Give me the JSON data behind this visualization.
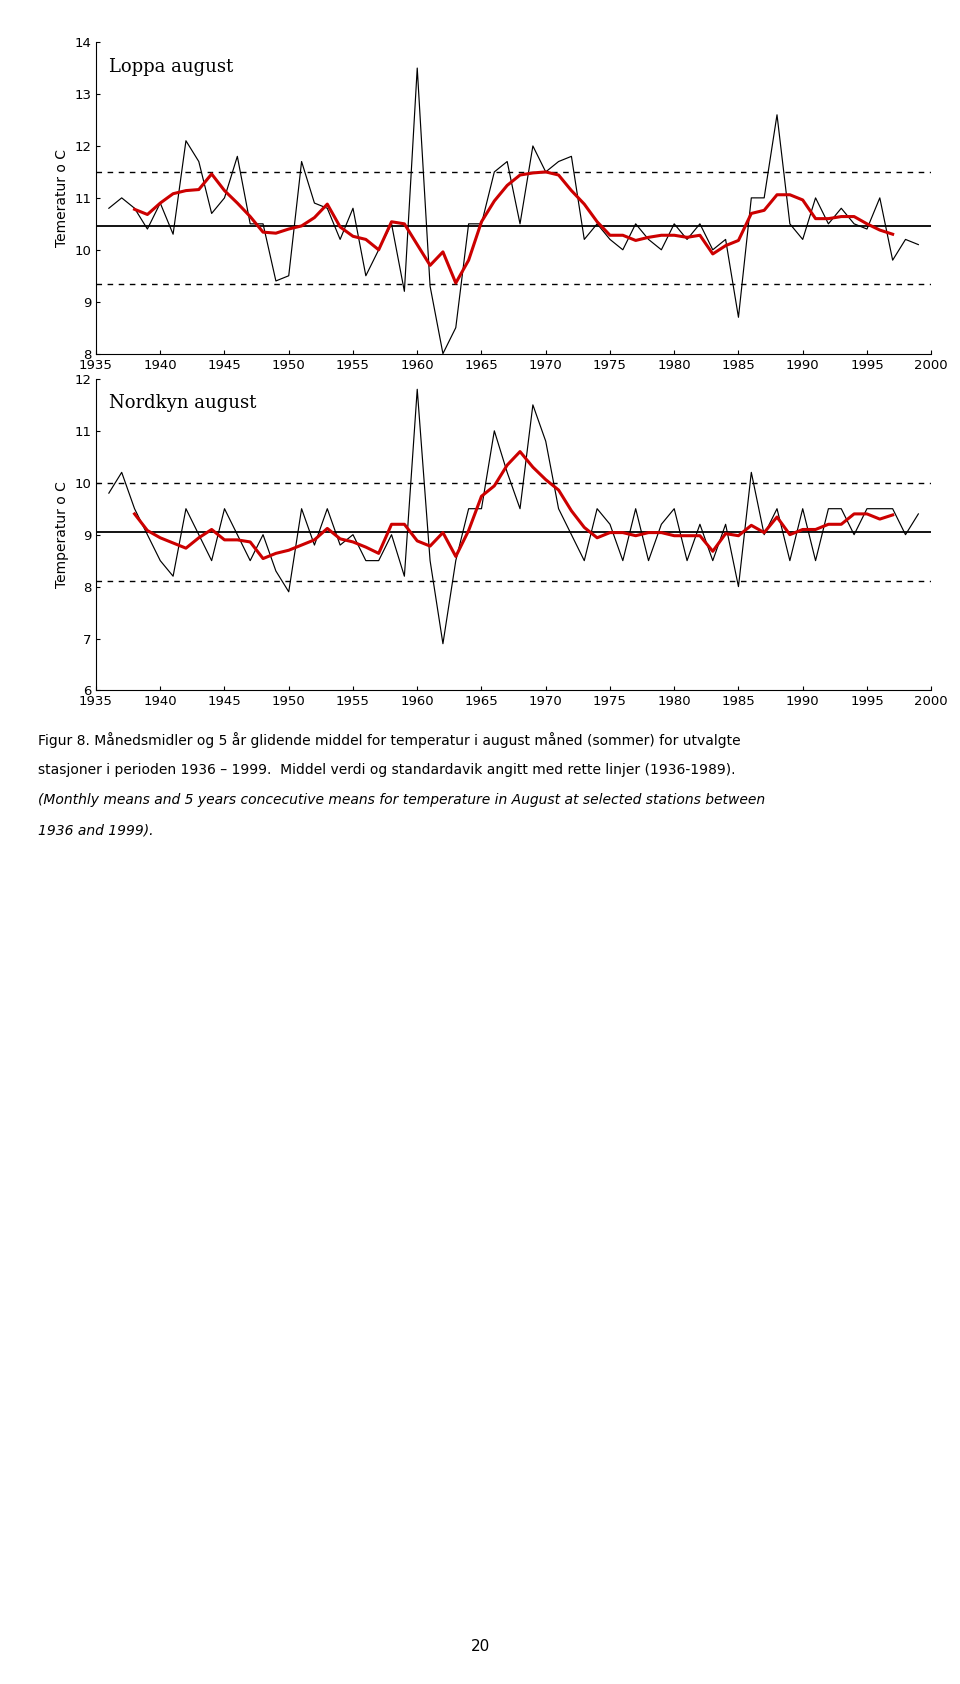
{
  "loppa": {
    "title": "Loppa august",
    "ylabel": "Temeratur o C",
    "years": [
      1936,
      1937,
      1938,
      1939,
      1940,
      1941,
      1942,
      1943,
      1944,
      1945,
      1946,
      1947,
      1948,
      1949,
      1950,
      1951,
      1952,
      1953,
      1954,
      1955,
      1956,
      1957,
      1958,
      1959,
      1960,
      1961,
      1962,
      1963,
      1964,
      1965,
      1966,
      1967,
      1968,
      1969,
      1970,
      1971,
      1972,
      1973,
      1974,
      1975,
      1976,
      1977,
      1978,
      1979,
      1980,
      1981,
      1982,
      1983,
      1984,
      1985,
      1986,
      1987,
      1988,
      1989,
      1990,
      1991,
      1992,
      1993,
      1994,
      1995,
      1996,
      1997,
      1998,
      1999
    ],
    "monthly": [
      10.8,
      11.0,
      10.8,
      10.4,
      10.9,
      10.3,
      12.1,
      11.7,
      10.7,
      11.0,
      11.8,
      10.5,
      10.5,
      9.4,
      9.5,
      11.7,
      10.9,
      10.8,
      10.2,
      10.8,
      9.5,
      10.0,
      10.5,
      9.2,
      13.5,
      9.3,
      8.0,
      8.5,
      10.5,
      10.5,
      11.5,
      11.7,
      10.5,
      12.0,
      11.5,
      11.7,
      11.8,
      10.2,
      10.5,
      10.2,
      10.0,
      10.5,
      10.2,
      10.0,
      10.5,
      10.2,
      10.5,
      10.0,
      10.2,
      8.7,
      11.0,
      11.0,
      12.6,
      10.5,
      10.2,
      11.0,
      10.5,
      10.8,
      10.5,
      10.4,
      11.0,
      9.8,
      10.2,
      10.1
    ],
    "mean": 10.45,
    "std_plus": 11.5,
    "std_minus": 9.35,
    "ylim": [
      8,
      14
    ],
    "yticks": [
      8,
      9,
      10,
      11,
      12,
      13,
      14
    ]
  },
  "nordkyn": {
    "title": "Nordkyn august",
    "ylabel": "Temperatur o C",
    "years": [
      1936,
      1937,
      1938,
      1939,
      1940,
      1941,
      1942,
      1943,
      1944,
      1945,
      1946,
      1947,
      1948,
      1949,
      1950,
      1951,
      1952,
      1953,
      1954,
      1955,
      1956,
      1957,
      1958,
      1959,
      1960,
      1961,
      1962,
      1963,
      1964,
      1965,
      1966,
      1967,
      1968,
      1969,
      1970,
      1971,
      1972,
      1973,
      1974,
      1975,
      1976,
      1977,
      1978,
      1979,
      1980,
      1981,
      1982,
      1983,
      1984,
      1985,
      1986,
      1987,
      1988,
      1989,
      1990,
      1991,
      1992,
      1993,
      1994,
      1995,
      1996,
      1997,
      1998,
      1999
    ],
    "monthly": [
      9.8,
      10.2,
      9.5,
      9.0,
      8.5,
      8.2,
      9.5,
      9.0,
      8.5,
      9.5,
      9.0,
      8.5,
      9.0,
      8.3,
      7.9,
      9.5,
      8.8,
      9.5,
      8.8,
      9.0,
      8.5,
      8.5,
      9.0,
      8.2,
      11.8,
      8.5,
      6.9,
      8.5,
      9.5,
      9.5,
      11.0,
      10.2,
      9.5,
      11.5,
      10.8,
      9.5,
      9.0,
      8.5,
      9.5,
      9.2,
      8.5,
      9.5,
      8.5,
      9.2,
      9.5,
      8.5,
      9.2,
      8.5,
      9.2,
      8.0,
      10.2,
      9.0,
      9.5,
      8.5,
      9.5,
      8.5,
      9.5,
      9.5,
      9.0,
      9.5,
      9.5,
      9.5,
      9.0,
      9.4
    ],
    "mean": 9.05,
    "std_plus": 10.0,
    "std_minus": 8.1,
    "ylim": [
      6,
      12
    ],
    "yticks": [
      6,
      7,
      8,
      9,
      10,
      11,
      12
    ]
  },
  "caption_line1": "Figur 8. Månedsmidler og 5 år glidende middel for temperatur i august måned (sommer) for utvalgte",
  "caption_line2": "stasjoner i perioden 1936 – 1999.  Middel verdi og standardavik angitt med rette linjer (1936-1989).",
  "caption_line3": "(Monthly means and 5 years concecutive means for temperature in August at selected stations between",
  "caption_line4": "1936 and 1999).",
  "page_number": "20",
  "line_color_monthly": "#000000",
  "line_color_smooth": "#cc0000",
  "line_color_mean": "#000000",
  "line_color_std": "#000000",
  "xlim": [
    1935,
    2000
  ],
  "xticks": [
    1935,
    1940,
    1945,
    1950,
    1955,
    1960,
    1965,
    1970,
    1975,
    1980,
    1985,
    1990,
    1995,
    2000
  ]
}
